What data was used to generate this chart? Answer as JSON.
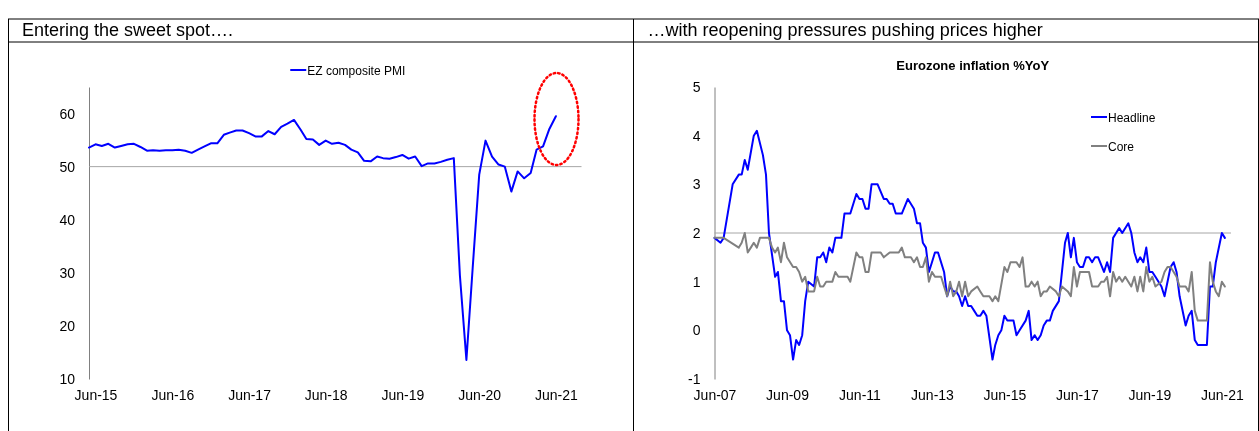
{
  "chart_data": [
    {
      "type": "line",
      "title": "Entering the sweet spot….",
      "legend": "top",
      "x": [
        "2015-05",
        "2015-06",
        "2015-07",
        "2015-08",
        "2015-09",
        "2015-10",
        "2015-11",
        "2015-12",
        "2016-01",
        "2016-02",
        "2016-03",
        "2016-04",
        "2016-05",
        "2016-06",
        "2016-07",
        "2016-08",
        "2016-09",
        "2016-10",
        "2016-11",
        "2016-12",
        "2017-01",
        "2017-02",
        "2017-03",
        "2017-04",
        "2017-05",
        "2017-06",
        "2017-07",
        "2017-08",
        "2017-09",
        "2017-10",
        "2017-11",
        "2017-12",
        "2018-01",
        "2018-02",
        "2018-03",
        "2018-04",
        "2018-05",
        "2018-06",
        "2018-07",
        "2018-08",
        "2018-09",
        "2018-10",
        "2018-11",
        "2018-12",
        "2019-01",
        "2019-02",
        "2019-03",
        "2019-04",
        "2019-05",
        "2019-06",
        "2019-07",
        "2019-08",
        "2019-09",
        "2019-10",
        "2019-11",
        "2019-12",
        "2020-01",
        "2020-02",
        "2020-03",
        "2020-04",
        "2020-05",
        "2020-06",
        "2020-07",
        "2020-08",
        "2020-09",
        "2020-10",
        "2020-11",
        "2020-12",
        "2021-01",
        "2021-02",
        "2021-03",
        "2021-04",
        "2021-05",
        "2021-06"
      ],
      "series": [
        {
          "name": "EZ composite PMI",
          "color": "#0000ff",
          "values": [
            53.6,
            54.2,
            53.9,
            54.3,
            53.6,
            53.9,
            54.2,
            54.3,
            53.7,
            53.0,
            53.1,
            53.0,
            53.1,
            53.1,
            53.2,
            53.0,
            52.6,
            53.2,
            53.8,
            54.4,
            54.4,
            56.0,
            56.4,
            56.8,
            56.8,
            56.3,
            55.7,
            55.7,
            56.7,
            56.1,
            57.5,
            58.1,
            58.8,
            57.0,
            55.2,
            55.1,
            54.1,
            54.9,
            54.3,
            54.5,
            54.1,
            53.2,
            52.7,
            51.1,
            51.0,
            51.9,
            51.6,
            51.5,
            51.8,
            52.2,
            51.5,
            51.9,
            50.1,
            50.6,
            50.6,
            50.9,
            51.3,
            51.6,
            29.5,
            13.6,
            31,
            48.5,
            54.9,
            51.9,
            50.4,
            50.0,
            45.3,
            49.1,
            47.8,
            48.8,
            53.2,
            53.8,
            57.1,
            59.5
          ]
        }
      ],
      "xlim": [
        "2015-05",
        "2021-10"
      ],
      "xticks": [
        {
          "value": "2015-06",
          "label": "Jun-15"
        },
        {
          "value": "2016-06",
          "label": "Jun-16"
        },
        {
          "value": "2017-06",
          "label": "Jun-17"
        },
        {
          "value": "2018-06",
          "label": "Jun-18"
        },
        {
          "value": "2019-06",
          "label": "Jun-19"
        },
        {
          "value": "2020-06",
          "label": "Jun-20"
        },
        {
          "value": "2021-06",
          "label": "Jun-21"
        }
      ],
      "ylim": [
        10,
        65
      ],
      "yticks": [
        10,
        20,
        30,
        40,
        50,
        60
      ],
      "ref_lines": [
        {
          "axis": "y",
          "value": 50,
          "color": "#a6a6a6"
        }
      ]
    },
    {
      "type": "line",
      "title": "…with reopening pressures pushing prices higher",
      "subtitle": "Eurozone inflation %YoY",
      "legend": "top right",
      "series": [
        {
          "name": "Headline",
          "color": "#0000ff",
          "x": [
            "2007-06",
            "2007-08",
            "2007-09",
            "2007-12",
            "2008-02",
            "2008-03",
            "2008-04",
            "2008-05",
            "2008-07",
            "2008-08",
            "2008-10",
            "2008-11",
            "2008-12",
            "2009-02",
            "2009-03",
            "2009-04",
            "2009-05",
            "2009-06",
            "2009-07",
            "2009-08",
            "2009-09",
            "2009-10",
            "2009-11",
            "2009-12",
            "2010-01",
            "2010-03",
            "2010-04",
            "2010-05",
            "2010-06",
            "2010-07",
            "2010-08",
            "2010-09",
            "2010-10",
            "2010-12",
            "2011-01",
            "2011-03",
            "2011-05",
            "2011-06",
            "2011-07",
            "2011-08",
            "2011-09",
            "2011-10",
            "2011-12",
            "2012-02",
            "2012-03",
            "2012-04",
            "2012-05",
            "2012-06",
            "2012-08",
            "2012-10",
            "2012-12",
            "2013-01",
            "2013-02",
            "2013-03",
            "2013-04",
            "2013-05",
            "2013-06",
            "2013-07",
            "2013-08",
            "2013-10",
            "2013-11",
            "2013-12",
            "2014-01",
            "2014-02",
            "2014-03",
            "2014-04",
            "2014-05",
            "2014-06",
            "2014-07",
            "2014-08",
            "2014-09",
            "2014-10",
            "2014-11",
            "2014-12",
            "2015-02",
            "2015-03",
            "2015-04",
            "2015-05",
            "2015-06",
            "2015-07",
            "2015-09",
            "2015-10",
            "2015-11",
            "2016-01",
            "2016-02",
            "2016-03",
            "2016-04",
            "2016-05",
            "2016-06",
            "2016-07",
            "2016-08",
            "2016-09",
            "2016-10",
            "2016-12",
            "2017-02",
            "2017-03",
            "2017-04",
            "2017-05",
            "2017-06",
            "2017-07",
            "2017-08",
            "2017-09",
            "2017-10",
            "2017-11",
            "2017-12",
            "2018-01",
            "2018-03",
            "2018-04",
            "2018-05",
            "2018-06",
            "2018-07",
            "2018-08",
            "2018-09",
            "2018-11",
            "2018-12",
            "2019-01",
            "2019-02",
            "2019-03",
            "2019-04",
            "2019-05",
            "2019-06",
            "2019-07",
            "2019-08",
            "2019-10",
            "2019-11",
            "2020-01",
            "2020-02",
            "2020-03",
            "2020-04",
            "2020-06",
            "2020-07",
            "2020-08",
            "2020-09",
            "2020-10",
            "2021-01",
            "2021-02",
            "2021-03",
            "2021-04",
            "2021-06",
            "2021-07"
          ],
          "values": [
            1.9,
            1.8,
            1.9,
            3.0,
            3.2,
            3.2,
            3.5,
            3.3,
            4.0,
            4.1,
            3.6,
            3.2,
            2.0,
            1.1,
            1.2,
            0.6,
            0.6,
            0,
            -0.1,
            -0.6,
            -0.2,
            -0.3,
            -0.1,
            0.6,
            1.0,
            0.9,
            1.5,
            1.5,
            1.6,
            1.4,
            1.7,
            1.6,
            1.9,
            1.9,
            2.4,
            2.4,
            2.8,
            2.7,
            2.7,
            2.5,
            2.5,
            3.0,
            3.0,
            2.7,
            2.7,
            2.6,
            2.6,
            2.4,
            2.4,
            2.7,
            2.5,
            2.2,
            2.2,
            1.8,
            1.7,
            1.2,
            1.4,
            1.6,
            1.6,
            1.2,
            0.7,
            0.9,
            0.8,
            0.8,
            0.7,
            0.5,
            0.7,
            0.5,
            0.5,
            0.4,
            0.3,
            0.3,
            0.4,
            0.3,
            -0.6,
            -0.3,
            -0.1,
            0,
            0.3,
            0.2,
            0.2,
            -0.1,
            0,
            0.2,
            0.4,
            -0.2,
            -0.1,
            -0.2,
            -0.1,
            0.1,
            0.2,
            0.2,
            0.4,
            0.6,
            1.8,
            2.0,
            1.5,
            1.9,
            1.4,
            1.3,
            1.3,
            1.5,
            1.5,
            1.4,
            1.5,
            1.5,
            1.2,
            1.4,
            1.2,
            1.9,
            2.0,
            2.1,
            2.0,
            2.2,
            2.0,
            1.6,
            1.4,
            1.5,
            1.4,
            1.7,
            1.2,
            1.2,
            1.1,
            0.9,
            0.7,
            1.3,
            1.4,
            1.2,
            0.7,
            0.1,
            0.3,
            0.4,
            -0.2,
            -0.3,
            -0.3,
            0.9,
            0.9,
            1.4,
            2.0,
            1.9
          ]
        },
        {
          "name": "Core",
          "color": "#808080",
          "x": [
            "2007-06",
            "2007-09",
            "2008-02",
            "2008-03",
            "2008-04",
            "2008-05",
            "2008-06",
            "2008-07",
            "2008-08",
            "2008-09",
            "2008-12",
            "2009-01",
            "2009-02",
            "2009-03",
            "2009-04",
            "2009-05",
            "2009-06",
            "2009-08",
            "2009-09",
            "2009-10",
            "2009-11",
            "2009-12",
            "2010-01",
            "2010-03",
            "2010-04",
            "2010-05",
            "2010-06",
            "2010-07",
            "2010-09",
            "2010-10",
            "2010-11",
            "2011-02",
            "2011-03",
            "2011-05",
            "2011-06",
            "2011-07",
            "2011-08",
            "2011-09",
            "2011-10",
            "2012-01",
            "2012-02",
            "2012-04",
            "2012-07",
            "2012-08",
            "2012-09",
            "2012-11",
            "2012-12",
            "2013-01",
            "2013-02",
            "2013-03",
            "2013-04",
            "2013-05",
            "2013-06",
            "2013-07",
            "2013-09",
            "2013-10",
            "2013-11",
            "2013-12",
            "2014-01",
            "2014-02",
            "2014-03",
            "2014-04",
            "2014-05",
            "2014-06",
            "2014-07",
            "2014-09",
            "2014-10",
            "2014-11",
            "2015-01",
            "2015-02",
            "2015-03",
            "2015-04",
            "2015-06",
            "2015-07",
            "2015-08",
            "2015-10",
            "2015-11",
            "2015-12",
            "2016-01",
            "2016-02",
            "2016-03",
            "2016-04",
            "2016-05",
            "2016-06",
            "2016-07",
            "2016-08",
            "2016-09",
            "2016-11",
            "2016-12",
            "2017-01",
            "2017-03",
            "2017-04",
            "2017-05",
            "2017-06",
            "2017-07",
            "2017-10",
            "2017-11",
            "2018-01",
            "2018-02",
            "2018-03",
            "2018-04",
            "2018-05",
            "2018-06",
            "2018-07",
            "2018-08",
            "2018-09",
            "2018-10",
            "2018-11",
            "2018-12",
            "2019-01",
            "2019-02",
            "2019-03",
            "2019-04",
            "2019-05",
            "2019-06",
            "2019-07",
            "2019-08",
            "2019-10",
            "2019-11",
            "2019-12",
            "2020-01",
            "2020-02",
            "2020-03",
            "2020-04",
            "2020-06",
            "2020-07",
            "2020-08",
            "2020-09",
            "2020-10",
            "2021-01",
            "2021-02",
            "2021-03",
            "2021-04",
            "2021-05",
            "2021-06",
            "2021-07"
          ],
          "values": [
            1.9,
            1.9,
            1.7,
            1.8,
            2.0,
            1.6,
            1.7,
            1.8,
            1.7,
            1.9,
            1.9,
            1.7,
            1.6,
            1.7,
            1.4,
            1.8,
            1.5,
            1.3,
            1.3,
            1.2,
            1.0,
            1.1,
            0.8,
            0.8,
            1.1,
            0.9,
            0.9,
            1.0,
            1.0,
            1.2,
            1.1,
            1.1,
            1.0,
            1.6,
            1.5,
            1.5,
            1.2,
            1.2,
            1.6,
            1.6,
            1.5,
            1.6,
            1.6,
            1.7,
            1.5,
            1.5,
            1.4,
            1.5,
            1.3,
            1.3,
            1.5,
            1.0,
            1.2,
            1.1,
            1.1,
            0.9,
            0.7,
            1.0,
            0.7,
            0.8,
            1.0,
            0.7,
            1.0,
            0.7,
            0.8,
            0.9,
            0.8,
            0.7,
            0.7,
            0.6,
            0.7,
            0.6,
            1.3,
            1.2,
            1.4,
            1.4,
            1.3,
            1.5,
            0.9,
            0.9,
            1.0,
            0.9,
            1.0,
            0.7,
            0.8,
            0.8,
            0.9,
            0.8,
            0.7,
            0.9,
            0.8,
            0.7,
            1.3,
            0.9,
            1.2,
            1.2,
            0.9,
            0.9,
            1.0,
            1.0,
            1.1,
            0.7,
            1.2,
            1.0,
            1.1,
            1.0,
            1.1,
            1.0,
            0.9,
            1.1,
            0.8,
            1.1,
            0.8,
            1.3,
            1.0,
            1.1,
            0.9,
            1.0,
            1.2,
            1.3,
            1.3,
            1.2,
            1.1,
            0.9,
            0.9,
            0.8,
            1.2,
            0.4,
            0.2,
            0.2,
            1.4,
            1.0,
            0.8,
            0.7,
            1.0,
            0.9
          ]
        }
      ],
      "xlim": [
        "2007-06",
        "2021-09"
      ],
      "xticks": [
        {
          "value": "2007-06",
          "label": "Jun-07"
        },
        {
          "value": "2009-06",
          "label": "Jun-09"
        },
        {
          "value": "2011-06",
          "label": "Jun-11"
        },
        {
          "value": "2013-06",
          "label": "Jun-13"
        },
        {
          "value": "2015-06",
          "label": "Jun-15"
        },
        {
          "value": "2017-06",
          "label": "Jun-17"
        },
        {
          "value": "2019-06",
          "label": "Jun-19"
        },
        {
          "value": "2021-06",
          "label": "Jun-21"
        }
      ],
      "ylim": [
        -1,
        5
      ],
      "yticks": [
        -1,
        0,
        1,
        2,
        3,
        4,
        5
      ],
      "ref_lines": [
        {
          "axis": "y",
          "value": 2,
          "color": "#a6a6a6"
        }
      ]
    }
  ]
}
